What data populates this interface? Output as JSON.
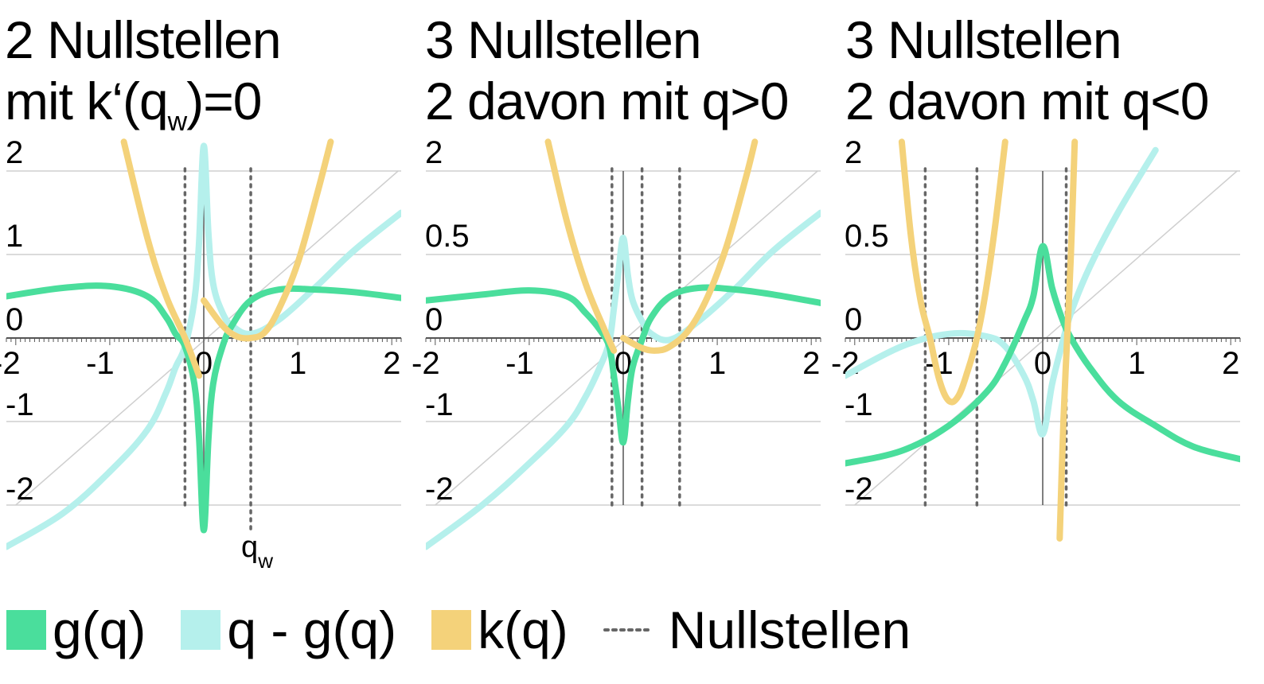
{
  "titles": [
    {
      "line1": "2 Nullstellen",
      "line2_pre": "mit k‘(q",
      "line2_sub": "w",
      "line2_post": ")=0"
    },
    {
      "line1": "3 Nullstellen",
      "line2_pre": "2 davon mit q>0",
      "line2_sub": "",
      "line2_post": ""
    },
    {
      "line1": "3 Nullstellen",
      "line2_pre": "2 davon mit q<0",
      "line2_sub": "",
      "line2_post": ""
    }
  ],
  "colors": {
    "g": "#4ade9c",
    "qg": "#b5f0ec",
    "k": "#f4d27a",
    "grid": "#cfcfcf",
    "axis": "#555555",
    "dots": "#666666"
  },
  "legend": [
    {
      "label": "g(q)",
      "type": "swatch",
      "color": "#4ade9c"
    },
    {
      "label": "q - g(q)",
      "type": "swatch",
      "color": "#b5f0ec"
    },
    {
      "label": "k(q)",
      "type": "swatch",
      "color": "#f4d27a"
    },
    {
      "label": "Nullstellen",
      "type": "dots",
      "color": "#666666"
    }
  ],
  "chart_data": [
    {
      "type": "line",
      "xlim": [
        -2.1,
        2.1
      ],
      "ylim": [
        -2.5,
        2.2
      ],
      "x_ticks": [
        "-2",
        "-1",
        "0",
        "1",
        "2"
      ],
      "y_tick_labels": [
        "2",
        "1",
        "0",
        "-1",
        "-2"
      ],
      "roots": [
        -0.2,
        0.5
      ],
      "roots_label": {
        "text": "q",
        "sub": "w",
        "at": 0.5
      },
      "series": [
        {
          "name": "g(q)",
          "x": [
            -2.1,
            -1.5,
            -1.0,
            -0.6,
            -0.4,
            -0.3,
            -0.2,
            -0.1,
            -0.05,
            0,
            0.05,
            0.1,
            0.2,
            0.3,
            0.5,
            0.8,
            1.2,
            1.6,
            2.1
          ],
          "y": [
            0.5,
            0.6,
            0.62,
            0.5,
            0.25,
            0.05,
            -0.1,
            -0.55,
            -1.2,
            -2.3,
            -1.2,
            -0.55,
            -0.1,
            0.15,
            0.45,
            0.58,
            0.58,
            0.55,
            0.48
          ]
        },
        {
          "name": "q - g(q)",
          "x": [
            -2.1,
            -1.5,
            -1.0,
            -0.6,
            -0.4,
            -0.3,
            -0.2,
            -0.1,
            -0.05,
            0,
            0.05,
            0.1,
            0.2,
            0.3,
            0.5,
            0.8,
            1.2,
            1.6,
            2.1
          ],
          "y": [
            -2.5,
            -2.1,
            -1.6,
            -1.1,
            -0.65,
            -0.35,
            -0.1,
            0.45,
            1.15,
            2.3,
            1.25,
            0.65,
            0.3,
            0.15,
            0.05,
            0.22,
            0.62,
            1.05,
            1.5
          ]
        },
        {
          "name": "k(q)",
          "x": [
            -0.85,
            -0.6,
            -0.4,
            -0.2,
            -0.05
          ],
          "y": [
            2.35,
            1.2,
            0.5,
            0.0,
            -0.45
          ]
        },
        {
          "name": "k(q)",
          "x": [
            0.0,
            0.2,
            0.35,
            0.5,
            0.65,
            0.8,
            1.0,
            1.2,
            1.35
          ],
          "y": [
            0.45,
            0.15,
            0.02,
            0.0,
            0.07,
            0.35,
            0.9,
            1.7,
            2.35
          ]
        }
      ]
    },
    {
      "type": "line",
      "xlim": [
        -2.1,
        2.1
      ],
      "ylim": [
        -2.5,
        2.2
      ],
      "x_ticks": [
        "-2",
        "-1",
        "0",
        "1",
        "2"
      ],
      "y_tick_labels": [
        "2",
        "0.5",
        "0",
        "-1",
        "-2"
      ],
      "roots": [
        -0.12,
        0.2,
        0.6
      ],
      "series": [
        {
          "name": "g(q)",
          "x": [
            -2.1,
            -1.5,
            -1.0,
            -0.6,
            -0.4,
            -0.25,
            -0.15,
            -0.1,
            -0.05,
            0,
            0.05,
            0.1,
            0.2,
            0.3,
            0.5,
            0.8,
            1.2,
            1.6,
            2.1
          ],
          "y": [
            0.45,
            0.52,
            0.57,
            0.5,
            0.3,
            0.1,
            -0.1,
            -0.45,
            -0.85,
            -1.25,
            -0.75,
            -0.35,
            -0.02,
            0.25,
            0.5,
            0.6,
            0.58,
            0.52,
            0.42
          ]
        },
        {
          "name": "q - g(q)",
          "x": [
            -2.1,
            -1.5,
            -1.0,
            -0.6,
            -0.4,
            -0.25,
            -0.15,
            -0.1,
            -0.05,
            0,
            0.05,
            0.1,
            0.2,
            0.3,
            0.5,
            0.8,
            1.2,
            1.6,
            2.1
          ],
          "y": [
            -2.5,
            -2.0,
            -1.5,
            -1.05,
            -0.7,
            -0.35,
            -0.05,
            0.35,
            0.8,
            1.2,
            0.75,
            0.45,
            0.2,
            0.05,
            -0.02,
            0.2,
            0.6,
            1.05,
            1.5
          ]
        },
        {
          "name": "k(q)",
          "x": [
            -0.8,
            -0.6,
            -0.4,
            -0.2,
            -0.1
          ],
          "y": [
            2.35,
            1.4,
            0.65,
            0.1,
            -0.15
          ]
        },
        {
          "name": "k(q)",
          "x": [
            0.0,
            0.2,
            0.35,
            0.5,
            0.7,
            0.9,
            1.1,
            1.3,
            1.4
          ],
          "y": [
            0.0,
            -0.12,
            -0.15,
            -0.1,
            0.1,
            0.5,
            1.1,
            1.9,
            2.35
          ]
        }
      ]
    },
    {
      "type": "line",
      "xlim": [
        -2.1,
        2.1
      ],
      "ylim": [
        -2.5,
        2.2
      ],
      "x_ticks": [
        "-2",
        "-1",
        "0",
        "1",
        "2"
      ],
      "y_tick_labels": [
        "2",
        "0.5",
        "0",
        "-1",
        "-2"
      ],
      "roots": [
        -1.25,
        -0.7,
        0.25
      ],
      "series": [
        {
          "name": "g(q)",
          "x": [
            -2.1,
            -1.5,
            -1.0,
            -0.6,
            -0.4,
            -0.2,
            -0.1,
            0,
            0.1,
            0.2,
            0.3,
            0.5,
            0.8,
            1.2,
            1.6,
            2.1
          ],
          "y": [
            -1.5,
            -1.35,
            -1.05,
            -0.65,
            -0.3,
            0.2,
            0.5,
            1.1,
            0.6,
            0.25,
            0.0,
            -0.35,
            -0.75,
            -1.05,
            -1.3,
            -1.45
          ]
        },
        {
          "name": "q - g(q)",
          "x": [
            -2.1,
            -1.5,
            -1.0,
            -0.6,
            -0.4,
            -0.2,
            -0.1,
            0,
            0.1,
            0.2,
            0.3,
            0.5,
            0.8,
            1.2
          ],
          "y": [
            -0.45,
            -0.1,
            0.05,
            0.02,
            -0.1,
            -0.45,
            -0.75,
            -1.15,
            -0.55,
            -0.1,
            0.3,
            0.85,
            1.5,
            2.25
          ]
        },
        {
          "name": "k(q)",
          "x": [
            -1.5,
            -1.4,
            -1.3,
            -1.2,
            -1.1,
            -1.0,
            -0.9,
            -0.8,
            -0.7,
            -0.6,
            -0.5,
            -0.4
          ],
          "y": [
            2.35,
            1.2,
            0.45,
            0.0,
            -0.5,
            -0.75,
            -0.7,
            -0.4,
            0.0,
            0.6,
            1.4,
            2.35
          ]
        },
        {
          "name": "k(q)",
          "x": [
            0.18,
            0.22,
            0.26,
            0.3,
            0.34
          ],
          "y": [
            -2.4,
            -1.0,
            0.0,
            1.0,
            2.35
          ]
        }
      ]
    }
  ]
}
